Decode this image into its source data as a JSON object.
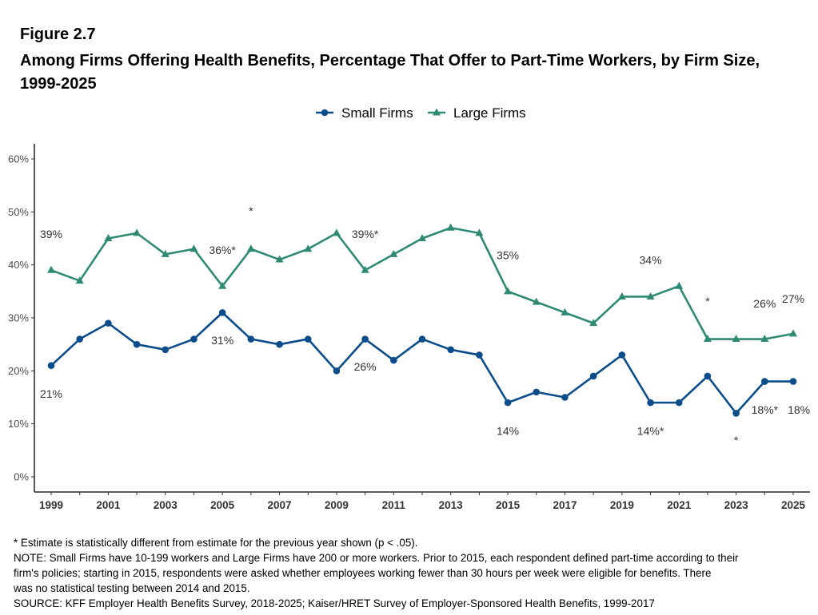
{
  "figure_label": "Figure 2.7",
  "title": "Among Firms Offering Health Benefits, Percentage That Offer to Part-Time Workers, by Firm Size, 1999-2025",
  "notes": [
    "* Estimate is statistically different from estimate for the previous year shown (p < .05).",
    "NOTE: Small Firms have 10-199 workers and Large Firms have 200 or more workers. Prior to 2015, each respondent defined part-time according to their",
    "firm's policies; starting in 2015, respondents were asked whether employees working fewer than 30 hours per week were eligible for benefits. There",
    "was no statistical testing between 2014 and 2015.",
    "SOURCE: KFF Employer Health Benefits Survey, 2018-2025; Kaiser/HRET Survey of Employer-Sponsored Health Benefits, 1999-2017"
  ],
  "chart_data": {
    "type": "line",
    "title": "Among Firms Offering Health Benefits, Percentage That Offer to Part-Time Workers, by Firm Size, 1999-2025",
    "xlabel": "",
    "ylabel": "",
    "x": [
      1999,
      2000,
      2001,
      2002,
      2003,
      2004,
      2005,
      2006,
      2007,
      2008,
      2009,
      2010,
      2011,
      2012,
      2013,
      2014,
      2015,
      2016,
      2017,
      2018,
      2019,
      2020,
      2021,
      2022,
      2023,
      2024,
      2025
    ],
    "xlim": [
      1999,
      2025
    ],
    "x_tick_labels": [
      "1999",
      "2001",
      "2003",
      "2005",
      "2007",
      "2009",
      "2011",
      "2013",
      "2015",
      "2017",
      "2019",
      "2021",
      "2023",
      "2025"
    ],
    "ylim": [
      0,
      60
    ],
    "y_ticks": [
      0,
      10,
      20,
      30,
      40,
      50,
      60
    ],
    "y_tick_labels": [
      "0%",
      "10%",
      "20%",
      "30%",
      "40%",
      "50%",
      "60%"
    ],
    "grid": false,
    "legend_position": "top",
    "series": [
      {
        "name": "Small Firms",
        "color": "#0b4d8a",
        "marker": "circle",
        "values": [
          21,
          26,
          29,
          25,
          24,
          26,
          31,
          26,
          25,
          26,
          20,
          26,
          22,
          26,
          24,
          23,
          14,
          16,
          15,
          19,
          23,
          14,
          14,
          19,
          12,
          18,
          18
        ]
      },
      {
        "name": "Large Firms",
        "color": "#2f8a73",
        "marker": "triangle",
        "values": [
          39,
          37,
          45,
          46,
          42,
          43,
          36,
          43,
          41,
          43,
          46,
          39,
          42,
          45,
          47,
          46,
          35,
          33,
          31,
          29,
          34,
          34,
          36,
          26,
          26,
          26,
          27
        ]
      }
    ],
    "annotations": [
      {
        "text": "39%",
        "x": 1999,
        "y": 45.8
      },
      {
        "text": "36%*",
        "x": 2005,
        "y": 42.8
      },
      {
        "text": "*",
        "x": 2006,
        "y": 50.2
      },
      {
        "text": "39%*",
        "x": 2010,
        "y": 45.8
      },
      {
        "text": "35%",
        "x": 2015,
        "y": 41.8
      },
      {
        "text": "34%",
        "x": 2020,
        "y": 40.9
      },
      {
        "text": "*",
        "x": 2022,
        "y": 33.2
      },
      {
        "text": "26%",
        "x": 2024,
        "y": 32.7
      },
      {
        "text": "27%",
        "x": 2025,
        "y": 33.6
      },
      {
        "text": "21%",
        "x": 1999,
        "y": 15.7
      },
      {
        "text": "31%",
        "x": 2005,
        "y": 25.8
      },
      {
        "text": "26%",
        "x": 2010,
        "y": 20.8
      },
      {
        "text": "14%",
        "x": 2015,
        "y": 8.7
      },
      {
        "text": "14%*",
        "x": 2020,
        "y": 8.7
      },
      {
        "text": "18%*",
        "x": 2024,
        "y": 12.7
      },
      {
        "text": "18%",
        "x": 2025.2,
        "y": 12.7
      },
      {
        "text": "*",
        "x": 2023,
        "y": 6.9
      }
    ]
  }
}
